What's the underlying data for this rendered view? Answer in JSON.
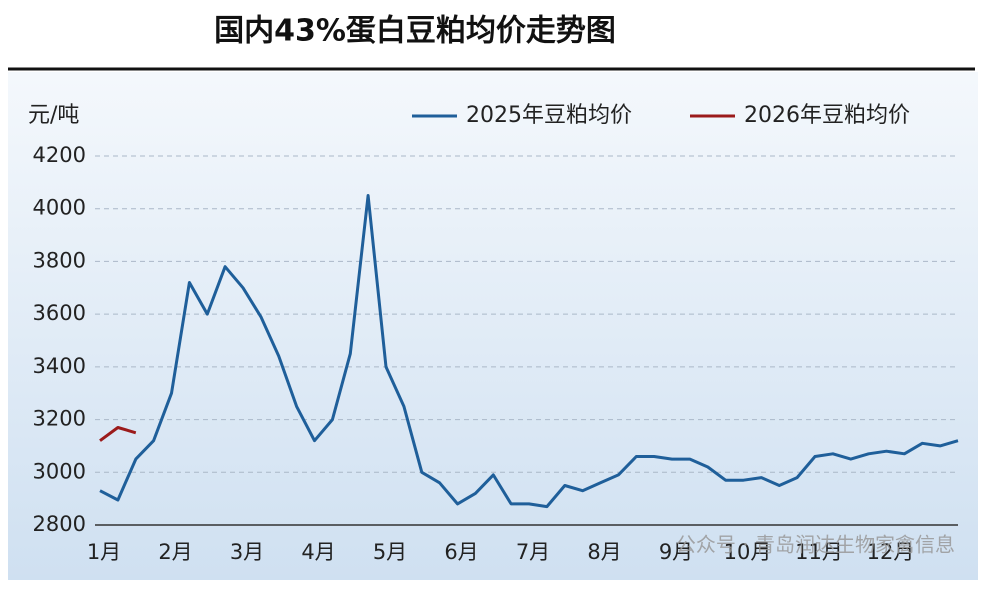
{
  "chart_data": {
    "type": "line",
    "title": "国内43%蛋白豆粕均价走势图",
    "y_label": "元/吨",
    "watermark": "公众号 · 青岛润达生物家禽信息",
    "categories": [
      "1月",
      null,
      null,
      null,
      "2月",
      null,
      null,
      null,
      "3月",
      null,
      null,
      null,
      "4月",
      null,
      null,
      null,
      "5月",
      null,
      null,
      null,
      "6月",
      null,
      null,
      null,
      "7月",
      null,
      null,
      null,
      "8月",
      null,
      null,
      null,
      "9月",
      null,
      null,
      null,
      "10月",
      null,
      null,
      null,
      "11月",
      null,
      null,
      null,
      "12月",
      null,
      null,
      null,
      null
    ],
    "series": [
      {
        "name": "2025年豆粕均价",
        "color": "#1f5f9a",
        "values": [
          2930,
          2895,
          3050,
          3120,
          3300,
          3720,
          3600,
          3780,
          3700,
          3590,
          3440,
          3250,
          3120,
          3200,
          3450,
          4050,
          3400,
          3250,
          3000,
          2960,
          2880,
          2920,
          2990,
          2880,
          2880,
          2870,
          2950,
          2930,
          2960,
          2990,
          3060,
          3060,
          3050,
          3050,
          3020,
          2970,
          2970,
          2980,
          2950,
          2980,
          3060,
          3070,
          3050,
          3070,
          3080,
          3070,
          3110,
          3100,
          3120
        ]
      },
      {
        "name": "2026年豆粕均价",
        "color": "#9b1b1b",
        "values": [
          3120,
          3170,
          3150,
          null,
          null,
          null,
          null,
          null,
          null,
          null,
          null,
          null,
          null,
          null,
          null,
          null,
          null,
          null,
          null,
          null,
          null,
          null,
          null,
          null,
          null,
          null,
          null,
          null,
          null,
          null,
          null,
          null,
          null,
          null,
          null,
          null,
          null,
          null,
          null,
          null,
          null,
          null,
          null,
          null,
          null,
          null,
          null,
          null,
          null
        ]
      }
    ],
    "ylim": [
      2800,
      4200
    ],
    "yticks": [
      2800,
      3000,
      3200,
      3400,
      3600,
      3800,
      4000,
      4200
    ],
    "grid": true,
    "legend": "top-right"
  }
}
